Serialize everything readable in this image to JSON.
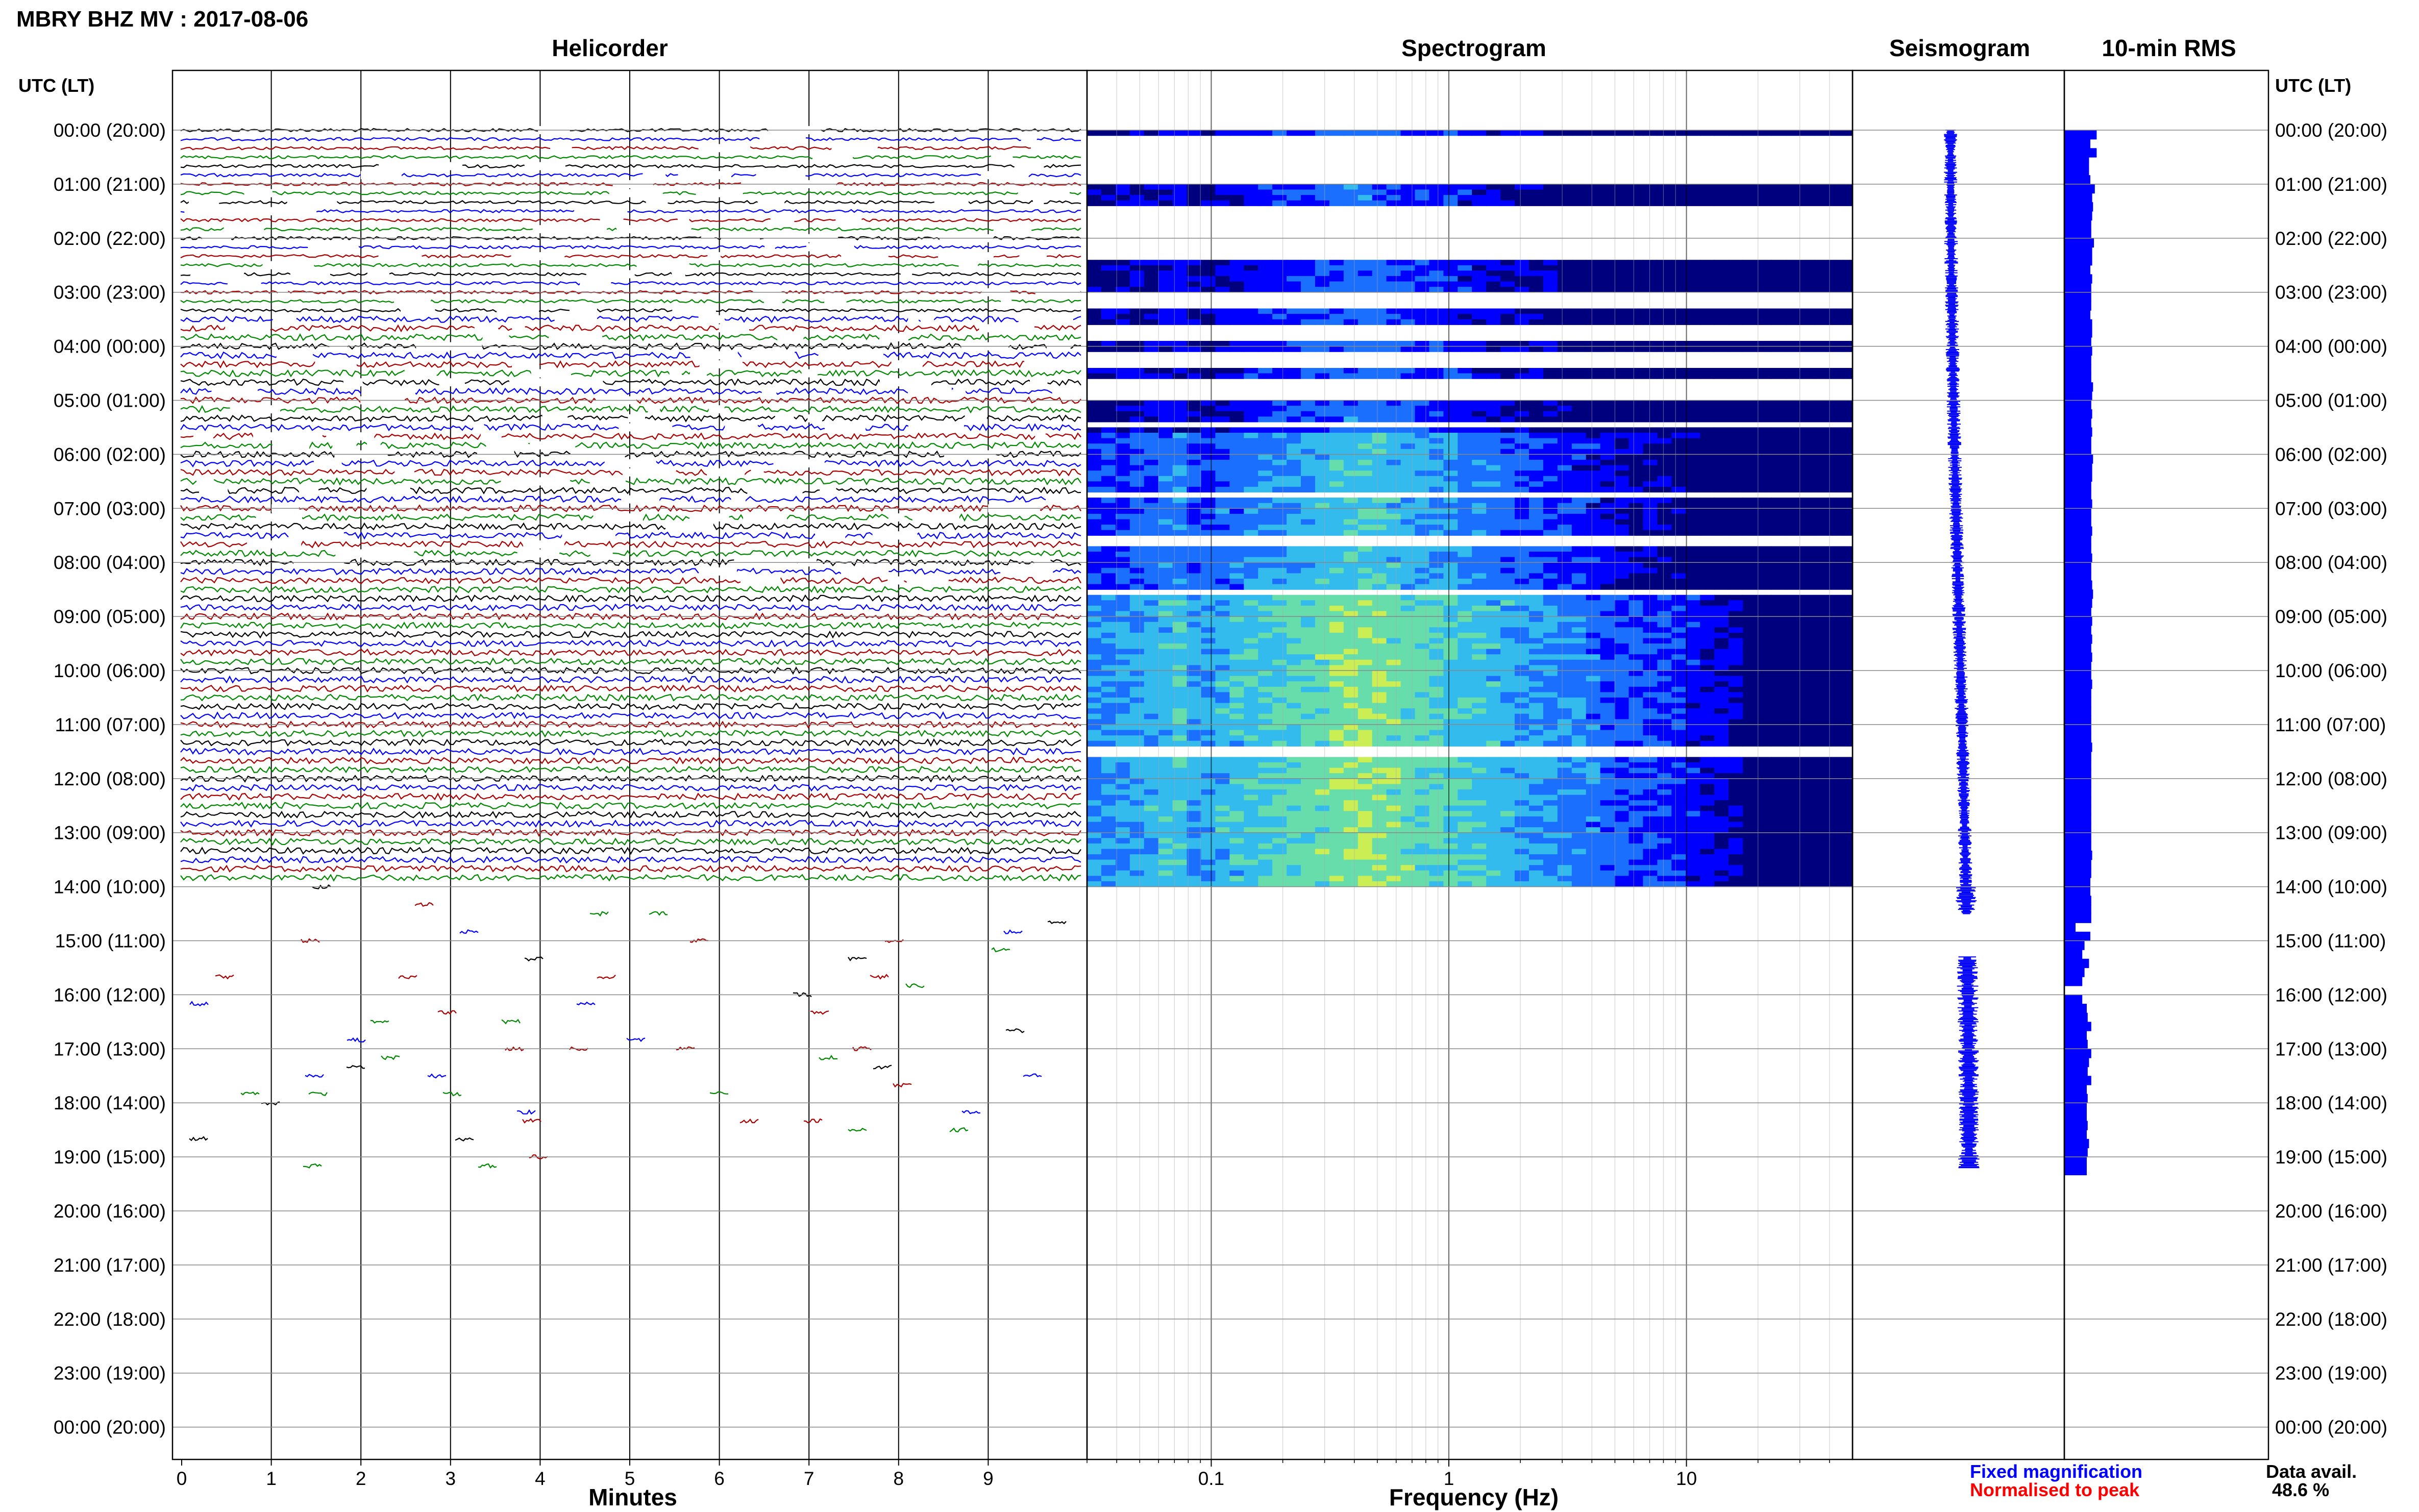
{
  "title": "MBRY BHZ MV : 2017-08-06",
  "panels": {
    "helicorder": "Helicorder",
    "spectrogram": "Spectrogram",
    "seismogram": "Seismogram",
    "rms": "10-min RMS"
  },
  "time_axis": {
    "header": "UTC (LT)",
    "labels": [
      "00:00 (20:00)",
      "01:00 (21:00)",
      "02:00 (22:00)",
      "03:00 (23:00)",
      "04:00 (00:00)",
      "05:00 (01:00)",
      "06:00 (02:00)",
      "07:00 (03:00)",
      "08:00 (04:00)",
      "09:00 (05:00)",
      "10:00 (06:00)",
      "11:00 (07:00)",
      "12:00 (08:00)",
      "13:00 (09:00)",
      "14:00 (10:00)",
      "15:00 (11:00)",
      "16:00 (12:00)",
      "17:00 (13:00)",
      "18:00 (14:00)",
      "19:00 (15:00)",
      "20:00 (16:00)",
      "21:00 (17:00)",
      "22:00 (18:00)",
      "23:00 (19:00)",
      "00:00 (20:00)"
    ]
  },
  "helicorder_axis": {
    "label": "Minutes",
    "ticks": [
      "0",
      "1",
      "2",
      "3",
      "4",
      "5",
      "6",
      "7",
      "8",
      "9"
    ]
  },
  "spectrogram_axis": {
    "label": "Frequency (Hz)",
    "ticks": [
      "0.1",
      "1",
      "10"
    ]
  },
  "legend": {
    "fixed": "Fixed magnification",
    "normalised": "Normalised to peak",
    "fixed_color": "#0000ff",
    "normalised_color": "#ff0000"
  },
  "availability": {
    "label": "Data avail.",
    "value": "48.6 %"
  },
  "chart_data": {
    "type": "heatmap",
    "station": "MBRY BHZ MV",
    "date": "2017-08-06",
    "helicorder_colors": [
      "#000000",
      "#0000ff",
      "#aa0000",
      "#008800"
    ],
    "helicorder_line_minutes": 10,
    "helicorder_xlim": [
      0,
      10
    ],
    "spectrogram_xscale": "log",
    "spectrogram_xlim": [
      0.03,
      50
    ],
    "spectrogram_colormap": [
      "#00007f",
      "#0000ff",
      "#1a6fff",
      "#33bbee",
      "#66ddaa",
      "#ccee55",
      "#ffee22"
    ],
    "spectrogram_data_hours": [
      0,
      13.9
    ],
    "spectrogram_gaps_hours": [
      [
        0.05,
        0.9
      ],
      [
        1.35,
        2.4
      ],
      [
        3.0,
        3.3
      ],
      [
        3.55,
        3.85
      ],
      [
        4.1,
        4.4
      ],
      [
        4.6,
        4.9
      ],
      [
        5.3,
        5.45
      ],
      [
        6.6,
        6.75
      ],
      [
        7.45,
        7.6
      ],
      [
        8.4,
        8.5
      ],
      [
        11.3,
        11.5
      ]
    ],
    "seismogram_color": "#0000ff",
    "seismogram_data_hours": [
      [
        0,
        14.5
      ],
      [
        15.3,
        19.2
      ]
    ],
    "rms_color": "#0000ff",
    "rms_hours": [
      0,
      19.333
    ],
    "rms_gap_hours": [
      [
        15.2,
        15.33
      ]
    ],
    "rms_values": [
      0.72,
      0.58,
      0.72,
      0.55,
      0.55,
      0.58,
      0.68,
      0.62,
      0.64,
      0.62,
      0.6,
      0.6,
      0.66,
      0.62,
      0.62,
      0.58,
      0.62,
      0.6,
      0.6,
      0.6,
      0.58,
      0.62,
      0.62,
      0.6,
      0.62,
      0.6,
      0.6,
      0.6,
      0.64,
      0.62,
      0.6,
      0.62,
      0.6,
      0.62,
      0.6,
      0.6,
      0.64,
      0.62,
      0.62,
      0.6,
      0.6,
      0.62,
      0.6,
      0.6,
      0.62,
      0.6,
      0.6,
      0.62,
      0.6,
      0.6,
      0.62,
      0.64,
      0.62,
      0.6,
      0.62,
      0.6,
      0.62,
      0.6,
      0.62,
      0.6,
      0.6,
      0.62,
      0.6,
      0.6,
      0.6,
      0.6,
      0.6,
      0.6,
      0.62,
      0.6,
      0.6,
      0.6,
      0.6,
      0.6,
      0.6,
      0.6,
      0.6,
      0.6,
      0.6,
      0.6,
      0.62,
      0.6,
      0.6,
      0.58,
      0.58,
      0.6,
      0.6,
      0.6,
      0.25,
      0.58,
      0.45,
      0.4,
      0.55,
      0.45,
      0.4,
      0.0,
      0.4,
      0.5,
      0.52,
      0.6,
      0.5,
      0.52,
      0.6,
      0.55,
      0.52,
      0.6,
      0.5,
      0.52,
      0.5,
      0.5,
      0.52,
      0.5,
      0.55,
      0.52,
      0.5,
      0.5
    ]
  }
}
